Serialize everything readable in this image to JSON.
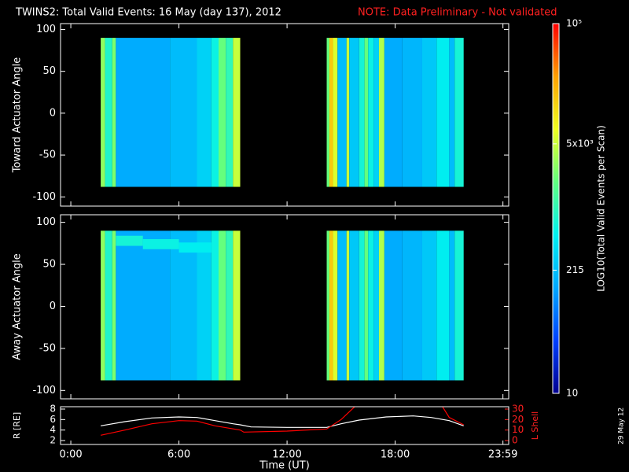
{
  "title": "TWINS2: Total Valid Events: 16 May (day 137), 2012",
  "note": "NOTE: Data Preliminary - Not validated",
  "date_stamp": "29 May 12",
  "colorbar": {
    "label": "LOG10(Total Valid Events per Scan)",
    "log": true,
    "lim": [
      10,
      100000
    ],
    "colors": [
      "#00008f",
      "#0040ff",
      "#00a8ff",
      "#00f0f0",
      "#60ff80",
      "#f0ff20",
      "#ffa000",
      "#ff0000"
    ],
    "ticks": [
      {
        "value": 10,
        "label": "10"
      },
      {
        "value": 215,
        "label": "215"
      },
      {
        "value": 5000,
        "label": "5x10³"
      },
      {
        "value": 100000,
        "label": "10⁵"
      }
    ]
  },
  "chart_data": [
    {
      "type": "heatmap",
      "ylabel": "Toward Actuator Angle",
      "xlim": [
        -0.57,
        24.3
      ],
      "ylim": [
        -111,
        107
      ],
      "xticks": [
        0,
        6,
        12,
        18,
        23.98
      ],
      "yticks": [
        -100,
        -50,
        0,
        50,
        100
      ],
      "cells": [
        [
          1.66,
          1.9,
          -88,
          90,
          3000
        ],
        [
          1.9,
          2.3,
          -88,
          90,
          800
        ],
        [
          2.3,
          2.5,
          -88,
          90,
          2500
        ],
        [
          2.5,
          5.5,
          -88,
          90,
          150
        ],
        [
          5.5,
          7,
          -88,
          90,
          200
        ],
        [
          7,
          7.8,
          -88,
          90,
          300
        ],
        [
          7.8,
          8.2,
          -88,
          90,
          600
        ],
        [
          8.2,
          8.6,
          -88,
          90,
          2000
        ],
        [
          8.6,
          9,
          -88,
          90,
          1000
        ],
        [
          9,
          9.4,
          -88,
          90,
          5000
        ],
        [
          14.2,
          14.35,
          -88,
          90,
          2000
        ],
        [
          14.35,
          14.55,
          -88,
          90,
          15000
        ],
        [
          14.55,
          14.8,
          -88,
          90,
          6000
        ],
        [
          14.8,
          15.3,
          -88,
          90,
          200
        ],
        [
          15.3,
          15.45,
          -88,
          90,
          5000
        ],
        [
          15.45,
          16,
          -88,
          90,
          250
        ],
        [
          16,
          16.3,
          -88,
          90,
          700
        ],
        [
          16.3,
          16.5,
          -88,
          90,
          2000
        ],
        [
          16.5,
          16.8,
          -88,
          90,
          600
        ],
        [
          16.8,
          17.1,
          -88,
          90,
          300
        ],
        [
          17.1,
          17.4,
          -88,
          90,
          4000
        ],
        [
          17.4,
          18.4,
          -88,
          90,
          150
        ],
        [
          18.4,
          19.5,
          -88,
          90,
          180
        ],
        [
          19.5,
          20.3,
          -88,
          90,
          250
        ],
        [
          20.3,
          21,
          -88,
          90,
          500
        ],
        [
          21,
          21.3,
          -88,
          90,
          200
        ],
        [
          21.3,
          21.8,
          -88,
          90,
          700
        ]
      ]
    },
    {
      "type": "heatmap",
      "ylabel": "Away Actuator Angle",
      "xlim": [
        -0.57,
        24.3
      ],
      "ylim": [
        -110,
        109
      ],
      "xticks": [
        0,
        6,
        12,
        18,
        23.98
      ],
      "yticks": [
        -100,
        -50,
        0,
        50,
        100
      ],
      "cells": [
        [
          1.66,
          1.9,
          -88,
          90,
          3000
        ],
        [
          1.9,
          2.3,
          -88,
          90,
          800
        ],
        [
          2.3,
          2.5,
          -88,
          90,
          2500
        ],
        [
          2.5,
          5.5,
          -88,
          90,
          150
        ],
        [
          5.5,
          7,
          -88,
          90,
          200
        ],
        [
          7,
          7.8,
          -88,
          90,
          300
        ],
        [
          7.8,
          8.2,
          -88,
          90,
          600
        ],
        [
          8.2,
          8.6,
          -88,
          90,
          2000
        ],
        [
          8.6,
          9,
          -88,
          90,
          1000
        ],
        [
          9,
          9.4,
          -88,
          90,
          5000
        ],
        [
          2.5,
          4,
          72,
          84,
          700
        ],
        [
          4,
          6,
          68,
          80,
          600
        ],
        [
          6,
          7.8,
          64,
          76,
          500
        ],
        [
          14.2,
          14.35,
          -88,
          90,
          2000
        ],
        [
          14.35,
          14.55,
          -88,
          90,
          15000
        ],
        [
          14.55,
          14.8,
          -88,
          90,
          6000
        ],
        [
          14.8,
          15.3,
          -88,
          90,
          200
        ],
        [
          15.3,
          15.45,
          -88,
          90,
          5000
        ],
        [
          15.45,
          16,
          -88,
          90,
          250
        ],
        [
          16,
          16.3,
          -88,
          90,
          700
        ],
        [
          16.3,
          16.5,
          -88,
          90,
          2000
        ],
        [
          16.5,
          16.8,
          -88,
          90,
          600
        ],
        [
          16.8,
          17.1,
          -88,
          90,
          300
        ],
        [
          17.1,
          17.4,
          -88,
          90,
          4000
        ],
        [
          17.4,
          18.4,
          -88,
          90,
          150
        ],
        [
          18.4,
          19.5,
          -88,
          90,
          180
        ],
        [
          19.5,
          20.3,
          -88,
          90,
          250
        ],
        [
          20.3,
          21,
          -88,
          90,
          500
        ],
        [
          21,
          21.3,
          -88,
          90,
          200
        ],
        [
          21.3,
          21.8,
          -88,
          90,
          700
        ]
      ]
    },
    {
      "type": "line",
      "xlabel": "Time (UT)",
      "ylabel": "R [RE]",
      "y2label": "L Shell",
      "xlim": [
        -0.57,
        24.3
      ],
      "ylim": [
        1.25,
        8.45
      ],
      "y2lim": [
        -3.75,
        32.25
      ],
      "xticks": [
        {
          "value": 0,
          "label": "0:00"
        },
        {
          "value": 6,
          "label": "6:00"
        },
        {
          "value": 12,
          "label": "12:00"
        },
        {
          "value": 18,
          "label": "18:00"
        },
        {
          "value": 23.98,
          "label": "23:59"
        }
      ],
      "yticks": [
        2,
        4,
        6,
        8
      ],
      "y2ticks": [
        0,
        10,
        20,
        30
      ],
      "series": [
        {
          "name": "R",
          "color": "#ffffff",
          "x": [
            1.66,
            3,
            4.5,
            6,
            7,
            8,
            9,
            9.4,
            10,
            12,
            14.2,
            15,
            16,
            17.5,
            19,
            20,
            21,
            21.8
          ],
          "values": [
            4.8,
            5.6,
            6.3,
            6.5,
            6.4,
            5.8,
            5.2,
            5.0,
            4.6,
            4.5,
            4.5,
            5.2,
            5.9,
            6.5,
            6.7,
            6.4,
            5.8,
            4.8
          ]
        },
        {
          "name": "L Shell",
          "color": "#ff0000",
          "axis": "y2",
          "x": [
            1.66,
            3,
            4.5,
            6,
            7,
            8,
            9.4,
            9.6,
            12,
            14.2,
            15,
            15.8,
            18,
            20.6,
            21,
            21.8
          ],
          "values": [
            5,
            10,
            16,
            19,
            18.5,
            14,
            10,
            8,
            9,
            11,
            20,
            33,
            null,
            33,
            22,
            15
          ]
        }
      ]
    }
  ]
}
